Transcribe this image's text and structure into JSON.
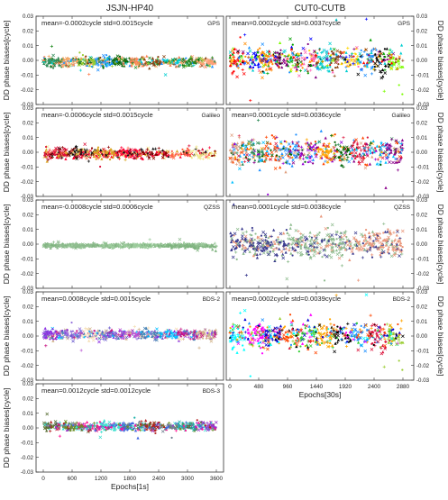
{
  "chart_data": {
    "type": "scatter",
    "columns": [
      {
        "title": "JSJN-HP40",
        "xlabel": "Epochs[1s]",
        "xlim": [
          -150,
          3750
        ],
        "xticks": [
          0,
          600,
          1200,
          1800,
          2400,
          3000,
          3600
        ],
        "panels": [
          {
            "system": "GPS",
            "stats": "mean=-0.0002cycle   std=0.0015cycle",
            "center": -0.001,
            "spread": 0.003,
            "colors": [
              "#2e8b57",
              "#f4a460",
              "#9acd32",
              "#1e90ff",
              "#006400",
              "#ff7f50",
              "#8b4513",
              "#00ced1",
              "#228b22",
              "#ffa07a"
            ]
          },
          {
            "system": "Galileo",
            "stats": "mean=-0.0006cycle   std=0.0015cycle",
            "center": -0.001,
            "spread": 0.003,
            "colors": [
              "#dc143c",
              "#111111",
              "#daa520",
              "#ff0033",
              "#8b0000",
              "#ff6347",
              "#f0e68c"
            ]
          },
          {
            "system": "QZSS",
            "stats": "mean=-0.0008cycle   std=0.0006cycle",
            "center": -0.001,
            "spread": 0.0012,
            "colors": [
              "#8fbc8f",
              "#9dcc9d",
              "#7fb37f"
            ]
          },
          {
            "system": "BDS-2",
            "stats": "mean=0.0008cycle   std=0.0015cycle",
            "center": 0.001,
            "spread": 0.003,
            "colors": [
              "#8a2be2",
              "#9370db",
              "#f5deb3",
              "#6a5acd",
              "#ba55d3",
              "#4682b4",
              "#00bfff",
              "#c71585",
              "#d2b48c"
            ]
          },
          {
            "system": "BDS-3",
            "stats": "mean=0.0012cycle   std=0.0012cycle",
            "center": 0.001,
            "spread": 0.0025,
            "colors": [
              "#556b2f",
              "#6b8e23",
              "#ff1493",
              "#40e0d0",
              "#4169e1",
              "#b22222",
              "#708090",
              "#20b2aa",
              "#9932cc"
            ]
          }
        ]
      },
      {
        "title": "CUT0-CUTB",
        "xlabel": "Epochs[30s]",
        "xlim": [
          -60,
          3060
        ],
        "xticks": [
          0,
          480,
          960,
          1440,
          1920,
          2400,
          2880
        ],
        "panels": [
          {
            "system": "GPS",
            "stats": "mean=0.0002cycle  std=0.0037cycle",
            "center": 0.0,
            "spread": 0.008,
            "colors": [
              "#ff0000",
              "#0000ff",
              "#ff8c00",
              "#800080",
              "#00a000",
              "#ff69b4",
              "#00ced1",
              "#8b4513",
              "#ffd700",
              "#1e90ff",
              "#000000",
              "#7cfc00"
            ]
          },
          {
            "system": "Galileo",
            "stats": "mean=0.0001cycle  std=0.0036cycle",
            "center": 0.0,
            "spread": 0.008,
            "colors": [
              "#e0a080",
              "#2e8b57",
              "#ff4500",
              "#1e90ff",
              "#9400d3",
              "#ffa500",
              "#006400",
              "#dc143c",
              "#00bfff",
              "#8b008b"
            ]
          },
          {
            "system": "QZSS",
            "stats": "mean=0.0001cycle  std=0.0038cycle",
            "center": 0.0,
            "spread": 0.008,
            "colors": [
              "#3b3b8f",
              "#8fbc8f",
              "#e9967a"
            ]
          },
          {
            "system": "BDS-2",
            "stats": "mean=0.0002cycle  std=0.0039cycle",
            "center": 0.0,
            "spread": 0.008,
            "colors": [
              "#00ffff",
              "#ff00ff",
              "#0000cd",
              "#ff4500",
              "#32cd32",
              "#ffa500",
              "#000000",
              "#1e90ff",
              "#dc143c",
              "#9acd32"
            ]
          }
        ]
      }
    ],
    "ylabel": "DD phase biases[cycle]",
    "ylim": [
      -0.03,
      0.03
    ],
    "yticks": [
      -0.03,
      -0.02,
      -0.01,
      0.0,
      0.01,
      0.02,
      0.03
    ],
    "ytick_labels": [
      "-0.03",
      "-0.02",
      "-0.01",
      "0.00",
      "0.01",
      "0.02",
      "0.03"
    ],
    "grid": false
  }
}
